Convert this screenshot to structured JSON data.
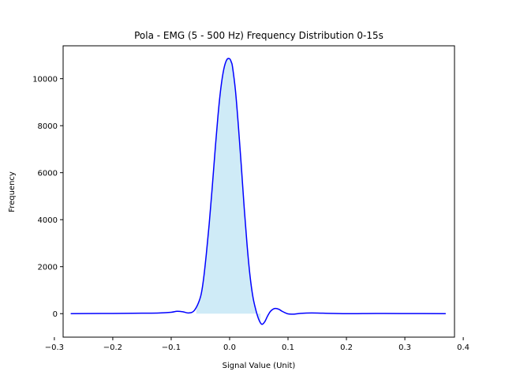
{
  "chart_data": {
    "type": "area",
    "title": "Pola - EMG (5 - 500 Hz) Frequency Distribution 0-15s",
    "xlabel": "Signal Value (Unit)",
    "ylabel": "Frequency",
    "xlim": [
      -0.285,
      0.385
    ],
    "ylim": [
      -1000,
      11400
    ],
    "x_ticks": [
      -0.3,
      -0.2,
      -0.1,
      0.0,
      0.1,
      0.2,
      0.3,
      0.4
    ],
    "x_tick_labels": [
      "−0.3",
      "−0.2",
      "−0.1",
      "0.0",
      "0.1",
      "0.2",
      "0.3",
      "0.4"
    ],
    "y_ticks": [
      0,
      2000,
      4000,
      6000,
      8000,
      10000
    ],
    "y_tick_labels": [
      "0",
      "2000",
      "4000",
      "6000",
      "8000",
      "10000"
    ],
    "grid": false,
    "legend": "none",
    "series": [
      {
        "line_color": "#0000ff",
        "fill_color": "#87ceeb",
        "fill_range": [
          -0.057,
          0.053
        ],
        "x": [
          -0.272,
          -0.25,
          -0.2,
          -0.15,
          -0.12,
          -0.1,
          -0.09,
          -0.08,
          -0.07,
          -0.06,
          -0.05,
          -0.045,
          -0.04,
          -0.035,
          -0.03,
          -0.025,
          -0.02,
          -0.015,
          -0.01,
          -0.005,
          0.0,
          0.003,
          0.005,
          0.01,
          0.015,
          0.02,
          0.025,
          0.03,
          0.035,
          0.04,
          0.045,
          0.05,
          0.055,
          0.06,
          0.065,
          0.07,
          0.075,
          0.08,
          0.085,
          0.09,
          0.1,
          0.11,
          0.12,
          0.14,
          0.16,
          0.2,
          0.25,
          0.3,
          0.37
        ],
        "y": [
          0,
          5,
          10,
          20,
          30,
          60,
          100,
          80,
          30,
          150,
          700,
          1400,
          2500,
          3800,
          5300,
          6900,
          8400,
          9600,
          10400,
          10800,
          10850,
          10700,
          10500,
          9500,
          8000,
          6300,
          4500,
          2900,
          1600,
          700,
          150,
          -250,
          -450,
          -350,
          -100,
          100,
          200,
          220,
          180,
          100,
          -10,
          -20,
          10,
          30,
          20,
          0,
          10,
          5,
          0
        ]
      }
    ]
  }
}
